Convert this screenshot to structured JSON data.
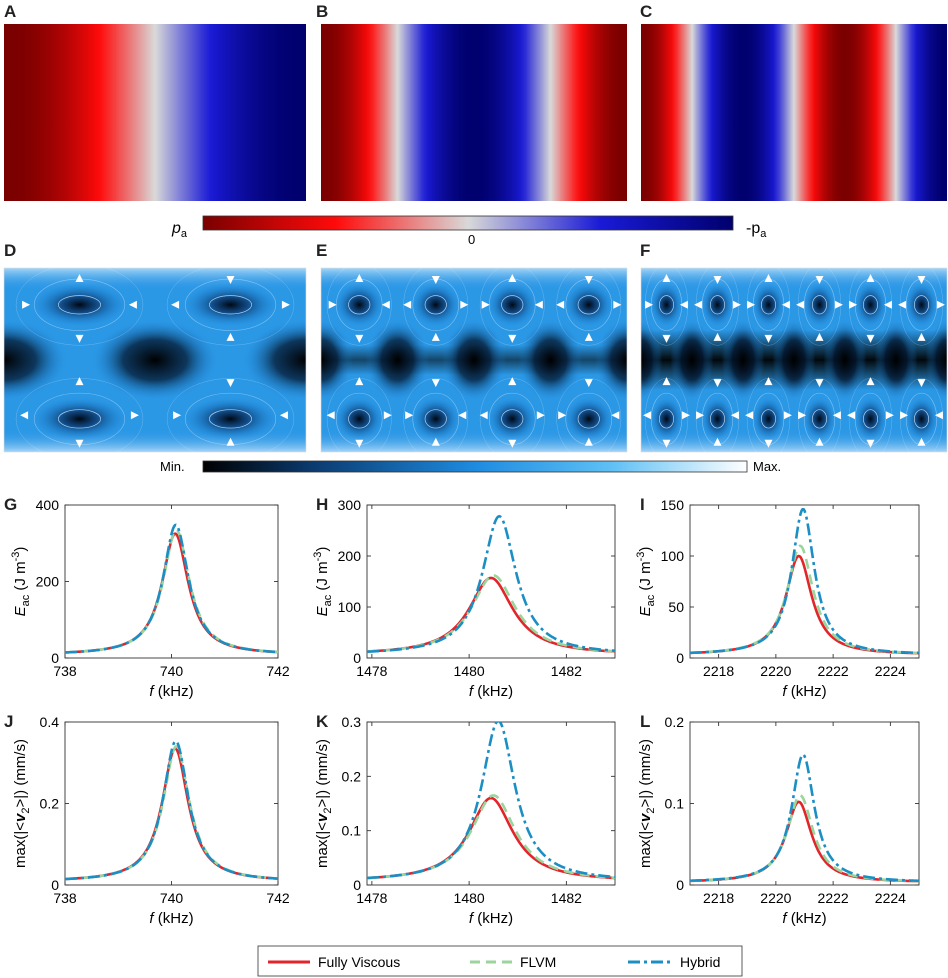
{
  "figure": {
    "panel_letters": [
      "A",
      "B",
      "C",
      "D",
      "E",
      "F",
      "G",
      "H",
      "I",
      "J",
      "K",
      "L"
    ],
    "pressure_colorbar": {
      "left_label": "p",
      "left_sub": "a",
      "center_label": "0",
      "right_label": "-p",
      "right_sub": "a",
      "colors": [
        "#7a0000",
        "#ff0a0a",
        "#d9d9d9",
        "#1a1ad6",
        "#00006e"
      ]
    },
    "streaming_colorbar": {
      "min_label": "Min.",
      "max_label": "Max.",
      "colors": [
        "#000000",
        "#0a3a6e",
        "#1e8be0",
        "#5ec0f5",
        "#ffffff"
      ]
    },
    "pressure_modes": [
      {
        "panel": "A",
        "mode": 1
      },
      {
        "panel": "B",
        "mode": 2
      },
      {
        "panel": "C",
        "mode": 3
      }
    ],
    "streaming_modes": [
      {
        "panel": "D",
        "cols": 2
      },
      {
        "panel": "E",
        "cols": 4
      },
      {
        "panel": "F",
        "cols": 6
      }
    ]
  },
  "legend": {
    "items": [
      {
        "label": "Fully Viscous",
        "color": "#e2252b",
        "style": "solid"
      },
      {
        "label": "FLVM",
        "color": "#9bd59c",
        "style": "dashed"
      },
      {
        "label": "Hybrid",
        "color": "#1b8fc4",
        "style": "dashdot"
      }
    ]
  },
  "chart_data": [
    {
      "panel": "G",
      "type": "line",
      "title": "",
      "xlabel_var": "f",
      "xlabel_unit": " (kHz)",
      "ylabel_var": "E",
      "ylabel_sub": "ac",
      "ylabel_unit": " (J m",
      "ylabel_sup": "-3",
      "ylabel_close": ")",
      "xlim": [
        738,
        742
      ],
      "ylim": [
        0,
        400
      ],
      "xticks": [
        "738",
        "740",
        "742"
      ],
      "xtick_vals": [
        738,
        740,
        742
      ],
      "yticks": [
        "0",
        "200",
        "400"
      ],
      "ytick_vals": [
        0,
        200,
        400
      ],
      "series": [
        {
          "name": "Fully Viscous",
          "f0": 740.07,
          "peak": 325,
          "gamma": 0.3,
          "base": 8
        },
        {
          "name": "FLVM",
          "f0": 740.09,
          "peak": 335,
          "gamma": 0.3,
          "base": 8
        },
        {
          "name": "Hybrid",
          "f0": 740.08,
          "peak": 348,
          "gamma": 0.29,
          "base": 8
        }
      ]
    },
    {
      "panel": "H",
      "type": "line",
      "title": "",
      "xlabel_var": "f",
      "xlabel_unit": " (kHz)",
      "ylabel_var": "E",
      "ylabel_sub": "ac",
      "ylabel_unit": " (J m",
      "ylabel_sup": "-3",
      "ylabel_close": ")",
      "xlim": [
        1477.9,
        1483.0
      ],
      "ylim": [
        0,
        300
      ],
      "xticks": [
        "1478",
        "1480",
        "1482"
      ],
      "xtick_vals": [
        1478,
        1480,
        1482
      ],
      "yticks": [
        "0",
        "100",
        "200",
        "300"
      ],
      "ytick_vals": [
        0,
        100,
        200,
        300
      ],
      "series": [
        {
          "name": "Fully Viscous",
          "f0": 1480.45,
          "peak": 157,
          "gamma": 0.55,
          "base": 6
        },
        {
          "name": "FLVM",
          "f0": 1480.5,
          "peak": 162,
          "gamma": 0.55,
          "base": 6
        },
        {
          "name": "Hybrid",
          "f0": 1480.62,
          "peak": 278,
          "gamma": 0.42,
          "base": 6
        }
      ]
    },
    {
      "panel": "I",
      "type": "line",
      "title": "",
      "xlabel_var": "f",
      "xlabel_unit": " (kHz)",
      "ylabel_var": "E",
      "ylabel_sub": "ac",
      "ylabel_unit": " (J m",
      "ylabel_sup": "-3",
      "ylabel_close": ")",
      "xlim": [
        2217.0,
        2225.0
      ],
      "ylim": [
        0,
        150
      ],
      "xticks": [
        "2218",
        "2220",
        "2222",
        "2224"
      ],
      "xtick_vals": [
        2218,
        2220,
        2222,
        2224
      ],
      "yticks": [
        "0",
        "50",
        "100",
        "150"
      ],
      "ytick_vals": [
        0,
        50,
        100,
        150
      ],
      "series": [
        {
          "name": "Fully Viscous",
          "f0": 2220.8,
          "peak": 100,
          "gamma": 0.55,
          "base": 3
        },
        {
          "name": "FLVM",
          "f0": 2220.85,
          "peak": 110,
          "gamma": 0.55,
          "base": 3
        },
        {
          "name": "Hybrid",
          "f0": 2220.95,
          "peak": 146,
          "gamma": 0.48,
          "base": 3
        }
      ]
    },
    {
      "panel": "J",
      "type": "line",
      "title": "",
      "xlabel_var": "f",
      "xlabel_unit": " (kHz)",
      "ylabel_pre": "max(|<",
      "ylabel_var": "v",
      "ylabel_sub": "2",
      "ylabel_unit": ">|) (mm/s)",
      "ylabel_sup": "",
      "ylabel_close": "",
      "xlim": [
        738,
        742
      ],
      "ylim": [
        0,
        0.4
      ],
      "xticks": [
        "738",
        "740",
        "742"
      ],
      "xtick_vals": [
        738,
        740,
        742
      ],
      "yticks": [
        "0",
        "0.2",
        "0.4"
      ],
      "ytick_vals": [
        0,
        0.2,
        0.4
      ],
      "series": [
        {
          "name": "Fully Viscous",
          "f0": 740.07,
          "peak": 0.335,
          "gamma": 0.3,
          "base": 0.008
        },
        {
          "name": "FLVM",
          "f0": 740.09,
          "peak": 0.34,
          "gamma": 0.3,
          "base": 0.008
        },
        {
          "name": "Hybrid",
          "f0": 740.08,
          "peak": 0.353,
          "gamma": 0.29,
          "base": 0.008
        }
      ]
    },
    {
      "panel": "K",
      "type": "line",
      "title": "",
      "xlabel_var": "f",
      "xlabel_unit": " (kHz)",
      "ylabel_pre": "max(|<",
      "ylabel_var": "v",
      "ylabel_sub": "2",
      "ylabel_unit": ">|) (mm/s)",
      "ylabel_sup": "",
      "ylabel_close": "",
      "xlim": [
        1477.9,
        1483.0
      ],
      "ylim": [
        0,
        0.3
      ],
      "xticks": [
        "1478",
        "1480",
        "1482"
      ],
      "xtick_vals": [
        1478,
        1480,
        1482
      ],
      "yticks": [
        "0",
        "0.1",
        "0.2",
        "0.3"
      ],
      "ytick_vals": [
        0,
        0.1,
        0.2,
        0.3
      ],
      "series": [
        {
          "name": "Fully Viscous",
          "f0": 1480.45,
          "peak": 0.16,
          "gamma": 0.55,
          "base": 0.006
        },
        {
          "name": "FLVM",
          "f0": 1480.5,
          "peak": 0.165,
          "gamma": 0.55,
          "base": 0.006
        },
        {
          "name": "Hybrid",
          "f0": 1480.6,
          "peak": 0.302,
          "gamma": 0.42,
          "base": 0.006
        }
      ]
    },
    {
      "panel": "L",
      "type": "line",
      "title": "",
      "xlabel_var": "f",
      "xlabel_unit": " (kHz)",
      "ylabel_pre": "max(|<",
      "ylabel_var": "v",
      "ylabel_sub": "2",
      "ylabel_unit": ">|) (mm/s)",
      "ylabel_sup": "",
      "ylabel_close": "",
      "xlim": [
        2217.0,
        2225.0
      ],
      "ylim": [
        0,
        0.2
      ],
      "xticks": [
        "2218",
        "2220",
        "2222",
        "2224"
      ],
      "xtick_vals": [
        2218,
        2220,
        2222,
        2224
      ],
      "yticks": [
        "0",
        "0.1",
        "0.2"
      ],
      "ytick_vals": [
        0,
        0.1,
        0.2
      ],
      "series": [
        {
          "name": "Fully Viscous",
          "f0": 2220.8,
          "peak": 0.102,
          "gamma": 0.55,
          "base": 0.003
        },
        {
          "name": "FLVM",
          "f0": 2220.85,
          "peak": 0.11,
          "gamma": 0.55,
          "base": 0.003
        },
        {
          "name": "Hybrid",
          "f0": 2220.95,
          "peak": 0.16,
          "gamma": 0.48,
          "base": 0.003
        }
      ]
    }
  ]
}
